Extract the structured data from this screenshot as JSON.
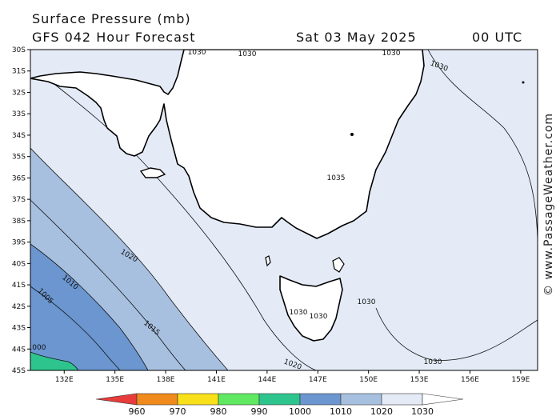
{
  "header": {
    "title": "Surface Pressure (mb)",
    "model": "GFS 042 Hour Forecast",
    "date": "Sat 03 May 2025",
    "time": "00 UTC"
  },
  "credit": "© www.PassageWeather.com",
  "map": {
    "lat_range": [
      -45,
      -30
    ],
    "lon_range": [
      130,
      160
    ],
    "lat_ticks": [
      "30S",
      "31S",
      "32S",
      "33S",
      "34S",
      "35S",
      "36S",
      "37S",
      "38S",
      "39S",
      "40S",
      "41S",
      "42S",
      "43S",
      "44S",
      "45S"
    ],
    "lon_ticks": [
      "132E",
      "135E",
      "138E",
      "141E",
      "144E",
      "147E",
      "150E",
      "153E",
      "156E",
      "159E"
    ],
    "contour_labels": [
      "1030",
      "1030",
      "1030",
      "1030",
      "1035",
      "1020",
      "1010",
      "1005",
      "1015",
      "1000",
      "1030",
      "1030",
      "1030",
      "1030",
      "1020"
    ],
    "colors": {
      "land": "#ffffff",
      "p1030": "#e4ebf7",
      "p1020": "#a8c0e0",
      "p1010": "#6b96d0",
      "p1000": "#2ec48e"
    }
  },
  "colorbar": {
    "labels": [
      "960",
      "970",
      "980",
      "990",
      "1000",
      "1010",
      "1020",
      "1030"
    ],
    "colors": [
      "#e83c3c",
      "#f08a1c",
      "#f8e01a",
      "#60e860",
      "#2ec48e",
      "#6b96d0",
      "#a8c0e0",
      "#e4ebf7"
    ]
  }
}
